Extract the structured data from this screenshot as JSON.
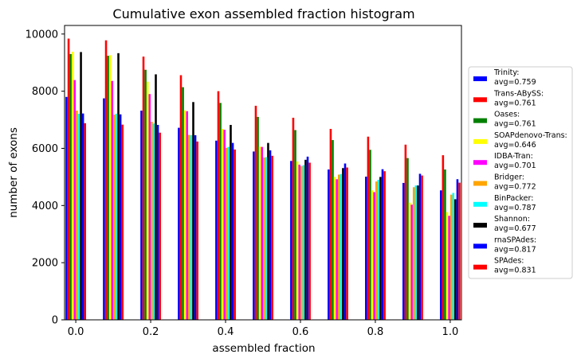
{
  "chart_data": {
    "type": "bar",
    "title": "Cumulative exon assembled fraction histogram",
    "xlabel": "assembled fraction",
    "ylabel": "number of exons",
    "xlim": [
      -0.03,
      1.03
    ],
    "ylim": [
      0,
      10300
    ],
    "x_ticks": [
      "0.0",
      "0.2",
      "0.4",
      "0.6",
      "0.8",
      "1.0"
    ],
    "y_ticks": [
      "0",
      "2000",
      "4000",
      "6000",
      "8000",
      "10000"
    ],
    "grid": false,
    "legend_position": "right, outside plot",
    "categories": [
      0.0,
      0.1,
      0.2,
      0.3,
      0.4,
      0.5,
      0.6,
      0.7,
      0.8,
      0.9,
      1.0
    ],
    "series": [
      {
        "name": "Trinity:",
        "avg": "avg=0.759",
        "color": "#0000ff",
        "values": [
          7800,
          7750,
          7320,
          6720,
          6270,
          5890,
          5560,
          5260,
          5010,
          4790,
          4530
        ]
      },
      {
        "name": "Trans-ABySS:",
        "avg": "avg=0.761",
        "color": "#ff0000",
        "values": [
          9840,
          9780,
          9210,
          8560,
          8000,
          7490,
          7070,
          6680,
          6410,
          6130,
          5760
        ]
      },
      {
        "name": "Oases:",
        "avg": "avg=0.761",
        "color": "#008000",
        "values": [
          9300,
          9240,
          8750,
          8140,
          7590,
          7100,
          6640,
          6290,
          5950,
          5660,
          5260
        ]
      },
      {
        "name": "SOAPdenovo-Trans:",
        "avg": "avg=0.646",
        "color": "#ffff00",
        "values": [
          9380,
          9260,
          8330,
          7330,
          6680,
          6060,
          5540,
          5000,
          4530,
          4100,
          3770
        ]
      },
      {
        "name": "IDBA-Tran:",
        "avg": "avg=0.701",
        "color": "#ff00ff",
        "values": [
          8390,
          8360,
          7900,
          7300,
          6650,
          6050,
          5430,
          4920,
          4470,
          4030,
          3640
        ]
      },
      {
        "name": "Bridger:",
        "avg": "avg=0.772",
        "color": "#ffa500",
        "values": [
          7320,
          7180,
          6930,
          6470,
          6020,
          5680,
          5380,
          5080,
          4840,
          4640,
          4380
        ]
      },
      {
        "name": "BinPacker:",
        "avg": "avg=0.787",
        "color": "#00ffff",
        "values": [
          7210,
          7210,
          6870,
          6460,
          6050,
          5690,
          5410,
          5100,
          4900,
          4700,
          4440
        ]
      },
      {
        "name": "Shannon:",
        "avg": "avg=0.677",
        "color": "#000000",
        "values": [
          9370,
          9330,
          8590,
          7620,
          6820,
          6190,
          5600,
          5310,
          5000,
          4700,
          4220
        ]
      },
      {
        "name": "rnaSPAdes:",
        "avg": "avg=0.817",
        "color": "#0000ff",
        "values": [
          7220,
          7190,
          6820,
          6460,
          6190,
          5930,
          5710,
          5470,
          5270,
          5110,
          4920
        ]
      },
      {
        "name": "SPAdes:",
        "avg": "avg=0.831",
        "color": "#ff0000",
        "values": [
          6880,
          6830,
          6550,
          6240,
          5960,
          5740,
          5500,
          5330,
          5200,
          5050,
          4800
        ]
      }
    ]
  }
}
